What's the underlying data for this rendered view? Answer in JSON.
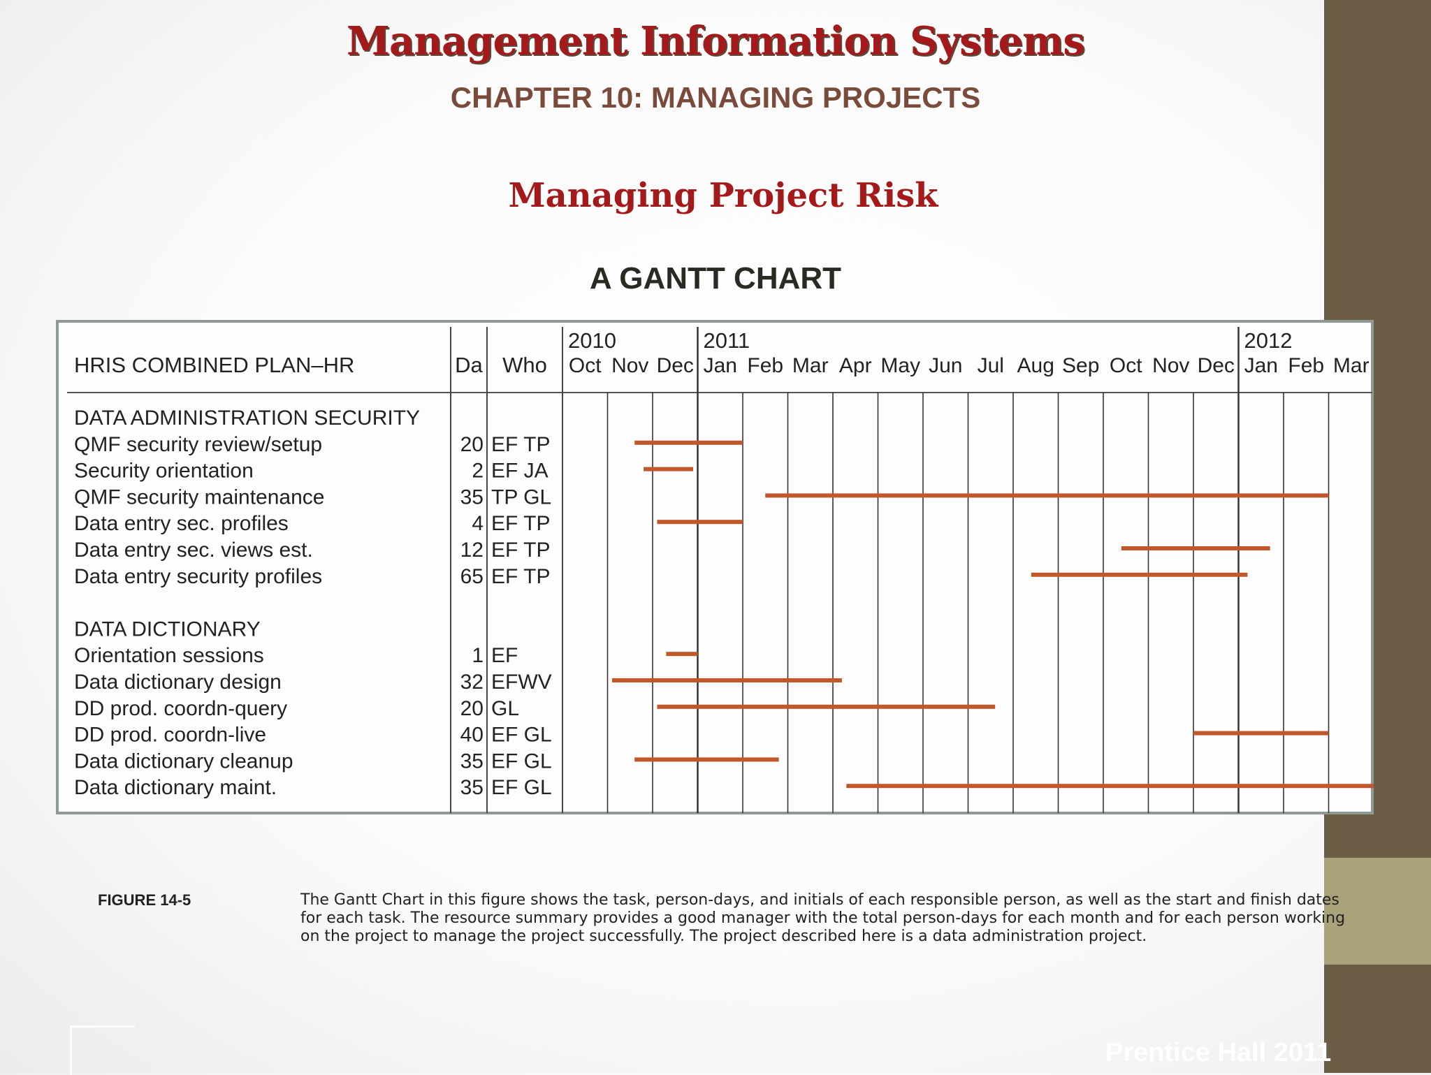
{
  "slide": {
    "title": "Management Information Systems",
    "subtitle": "CHAPTER 10: MANAGING PROJECTS",
    "section_title": "Managing Project Risk",
    "chart_title": "A GANTT CHART",
    "figure_label": "FIGURE 14-5",
    "caption": "The Gantt Chart in this figure shows the task, person-days, and initials of each responsible person, as well as the start and finish dates for each task. The resource summary provides a good manager with the total person-days for each month and for each person working on the project to manage the project successfully. The project described here is a data administration project.",
    "footer": "Prentice Hall 2011"
  },
  "colors": {
    "bar": "#c0582b",
    "title": "#a41a1a",
    "sidebar": "#6b5e45",
    "sidebar_accent": "#aaa27a"
  },
  "chart_data": {
    "type": "gantt",
    "header": {
      "task": "HRIS COMBINED PLAN–HR",
      "days": "Da",
      "who": "Who"
    },
    "years": [
      {
        "label": "2010",
        "month_index": 0
      },
      {
        "label": "2011",
        "month_index": 3
      },
      {
        "label": "2012",
        "month_index": 15
      }
    ],
    "months": [
      "Oct",
      "Nov",
      "Dec",
      "Jan",
      "Feb",
      "Mar",
      "Apr",
      "May",
      "Jun",
      "Jul",
      "Aug",
      "Sep",
      "Oct",
      "Nov",
      "Dec",
      "Jan",
      "Feb",
      "Mar"
    ],
    "groups": [
      {
        "name": "DATA ADMINISTRATION SECURITY",
        "tasks": [
          {
            "task": "QMF security review/setup",
            "days": "20",
            "who": "EF TP",
            "start": 1.6,
            "end": 4.0
          },
          {
            "task": "Security orientation",
            "days": "2",
            "who": "EF  JA",
            "start": 1.8,
            "end": 2.9
          },
          {
            "task": "QMF security maintenance",
            "days": "35",
            "who": "TP GL",
            "start": 4.5,
            "end": 17.0
          },
          {
            "task": "Data entry sec. profiles",
            "days": "4",
            "who": "EF TP",
            "start": 2.1,
            "end": 4.0
          },
          {
            "task": "Data entry sec. views est.",
            "days": "12",
            "who": "EF TP",
            "start": 12.4,
            "end": 15.7
          },
          {
            "task": "Data entry security profiles",
            "days": "65",
            "who": "EF TP",
            "start": 10.4,
            "end": 15.2
          }
        ]
      },
      {
        "name": "DATA DICTIONARY",
        "tasks": [
          {
            "task": "Orientation sessions",
            "days": "1",
            "who": "EF",
            "start": 2.3,
            "end": 3.0
          },
          {
            "task": "Data dictionary design",
            "days": "32",
            "who": "EFWV",
            "start": 1.1,
            "end": 6.2
          },
          {
            "task": "DD prod. coordn-query",
            "days": "20",
            "who": "GL",
            "start": 2.1,
            "end": 9.6
          },
          {
            "task": "DD prod. coordn-live",
            "days": "40",
            "who": "EF GL",
            "start": 14.0,
            "end": 17.0
          },
          {
            "task": "Data dictionary cleanup",
            "days": "35",
            "who": "EF GL",
            "start": 1.6,
            "end": 4.8
          },
          {
            "task": "Data dictionary maint.",
            "days": "35",
            "who": "EF GL",
            "start": 6.3,
            "end": 18.0
          }
        ]
      }
    ]
  }
}
